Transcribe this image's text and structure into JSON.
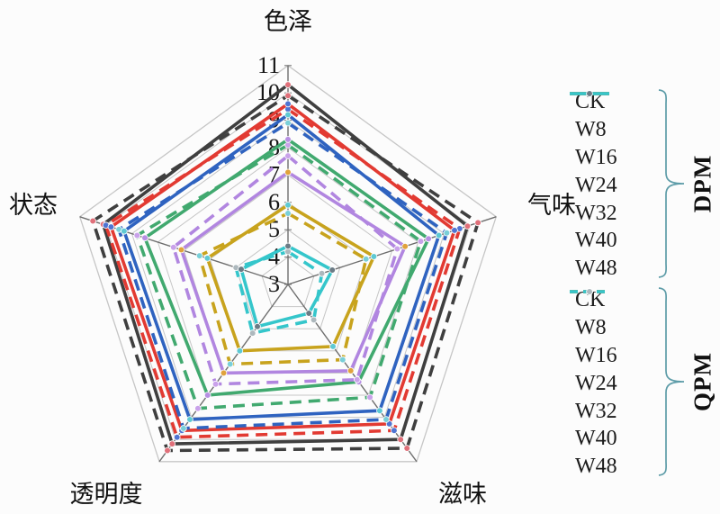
{
  "figure": {
    "background": "#fcfcfc",
    "brace_color": "#5d9ca8"
  },
  "chart_data": {
    "type": "radar",
    "title": "",
    "axes": [
      "色泽",
      "气味",
      "滋味",
      "透明度",
      "状态"
    ],
    "r_min": 3,
    "r_max": 11,
    "r_tick_step": 1,
    "tick_labels": [
      "3",
      "4",
      "5",
      "6",
      "7",
      "8",
      "9",
      "10",
      "11"
    ],
    "grid": true,
    "grid_color": "#c6c6c6",
    "spoke_color": "#6e6e6e",
    "marker": "circle",
    "legend_position": "right",
    "groups": [
      {
        "name": "DPM",
        "line_style": "solid",
        "dash": null,
        "series": [
          {
            "name": "CK",
            "color": "#3f3f3f",
            "marker_color": "#e0707a",
            "values": [
              10.3,
              9.9,
              10.0,
              10.2,
              10.1
            ]
          },
          {
            "name": "W8",
            "color": "#e23a32",
            "marker_color": "#4f74d2",
            "values": [
              9.6,
              9.4,
              9.3,
              9.6,
              9.8
            ]
          },
          {
            "name": "W16",
            "color": "#2f63c0",
            "marker_color": "#5ec9d3",
            "values": [
              9.2,
              8.8,
              8.7,
              9.1,
              9.3
            ]
          },
          {
            "name": "W24",
            "color": "#41a96f",
            "marker_color": "#b78fe3",
            "values": [
              8.3,
              8.4,
              7.4,
              8.0,
              8.5
            ]
          },
          {
            "name": "W32",
            "color": "#b186e0",
            "marker_color": "#e0a23c",
            "values": [
              7.1,
              7.5,
              6.9,
              7.0,
              7.1
            ]
          },
          {
            "name": "W40",
            "color": "#c8a31d",
            "marker_color": "#5ec9d3",
            "values": [
              5.9,
              6.3,
              5.8,
              6.0,
              6.1
            ]
          },
          {
            "name": "W48",
            "color": "#35c6cb",
            "marker_color": "#6b7b85",
            "values": [
              4.4,
              4.7,
              4.3,
              4.9,
              4.8
            ]
          }
        ]
      },
      {
        "name": "QPM",
        "line_style": "dashed",
        "dash": [
          13,
          8
        ],
        "series": [
          {
            "name": "CK",
            "color": "#3f3f3f",
            "marker_color": "#e0707a",
            "values": [
              9.9,
              10.3,
              10.4,
              10.5,
              10.5
            ]
          },
          {
            "name": "W8",
            "color": "#e23a32",
            "marker_color": "#4f74d2",
            "values": [
              9.4,
              9.6,
              9.6,
              9.9,
              10.0
            ]
          },
          {
            "name": "W16",
            "color": "#2f63c0",
            "marker_color": "#79cfd8",
            "values": [
              8.9,
              9.1,
              9.1,
              9.5,
              9.5
            ]
          },
          {
            "name": "W24",
            "color": "#41a96f",
            "marker_color": "#c9a2ea",
            "values": [
              8.1,
              8.1,
              8.1,
              8.6,
              8.8
            ]
          },
          {
            "name": "W32",
            "color": "#b186e0",
            "marker_color": "#c9a2ea",
            "values": [
              7.7,
              7.2,
              7.3,
              7.5,
              7.4
            ]
          },
          {
            "name": "W40",
            "color": "#c8a31d",
            "marker_color": "#79cfd8",
            "values": [
              5.6,
              6.0,
              6.4,
              6.6,
              6.4
            ]
          },
          {
            "name": "W48",
            "color": "#35c6cb",
            "marker_color": "#adb8bd",
            "values": [
              4.2,
              4.3,
              4.6,
              5.2,
              5.0
            ]
          }
        ]
      }
    ]
  }
}
